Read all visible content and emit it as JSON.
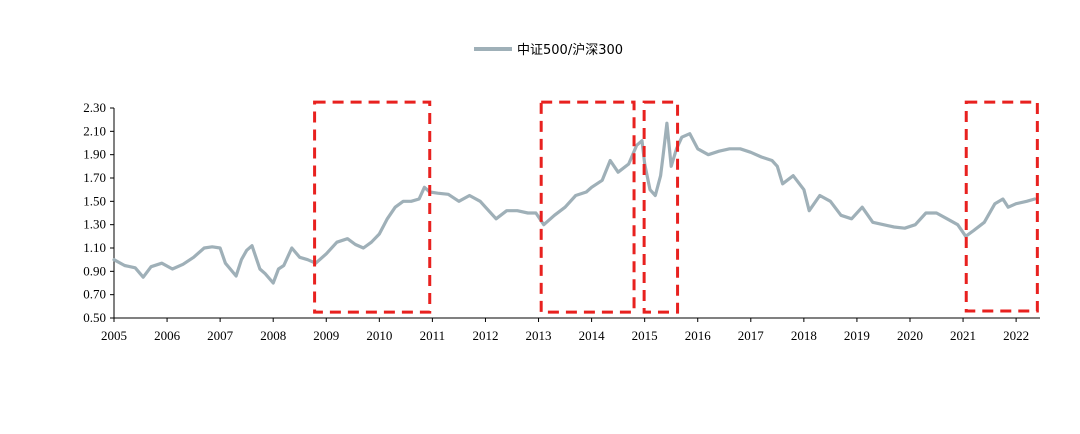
{
  "chart_data": {
    "type": "line",
    "title": "",
    "xlabel": "",
    "ylabel": "",
    "ylim": [
      0.5,
      2.3
    ],
    "yticks": [
      "0.50",
      "0.70",
      "0.90",
      "1.10",
      "1.30",
      "1.50",
      "1.70",
      "1.90",
      "2.10",
      "2.30"
    ],
    "xlim": [
      2005.0,
      2022.45
    ],
    "xticks": [
      "2005",
      "2006",
      "2007",
      "2008",
      "2009",
      "2010",
      "2011",
      "2012",
      "2013",
      "2014",
      "2015",
      "2016",
      "2017",
      "2018",
      "2019",
      "2020",
      "2021",
      "2022"
    ],
    "grid": false,
    "legend": "top-center",
    "series": [
      {
        "name": "中证500/沪深300",
        "color": "#9fb0b8",
        "x": [
          2005.0,
          2005.2,
          2005.4,
          2005.55,
          2005.7,
          2005.9,
          2006.1,
          2006.3,
          2006.5,
          2006.7,
          2006.85,
          2007.0,
          2007.1,
          2007.3,
          2007.4,
          2007.5,
          2007.6,
          2007.75,
          2007.85,
          2008.0,
          2008.1,
          2008.2,
          2008.35,
          2008.5,
          2008.65,
          2008.8,
          2009.0,
          2009.2,
          2009.4,
          2009.55,
          2009.7,
          2009.85,
          2010.0,
          2010.15,
          2010.3,
          2010.45,
          2010.6,
          2010.75,
          2010.85,
          2010.95,
          2011.1,
          2011.3,
          2011.5,
          2011.7,
          2011.9,
          2012.0,
          2012.2,
          2012.4,
          2012.6,
          2012.8,
          2012.95,
          2013.1,
          2013.3,
          2013.5,
          2013.7,
          2013.9,
          2014.0,
          2014.2,
          2014.35,
          2014.5,
          2014.7,
          2014.85,
          2014.95,
          2015.0,
          2015.1,
          2015.2,
          2015.3,
          2015.35,
          2015.42,
          2015.5,
          2015.6,
          2015.7,
          2015.85,
          2016.0,
          2016.2,
          2016.4,
          2016.6,
          2016.8,
          2017.0,
          2017.2,
          2017.4,
          2017.5,
          2017.6,
          2017.8,
          2018.0,
          2018.1,
          2018.3,
          2018.5,
          2018.7,
          2018.9,
          2019.1,
          2019.3,
          2019.5,
          2019.7,
          2019.9,
          2020.1,
          2020.3,
          2020.5,
          2020.7,
          2020.9,
          2021.05,
          2021.2,
          2021.4,
          2021.6,
          2021.75,
          2021.85,
          2022.0,
          2022.2,
          2022.35
        ],
        "values": [
          1.0,
          0.95,
          0.93,
          0.85,
          0.94,
          0.97,
          0.92,
          0.96,
          1.02,
          1.1,
          1.11,
          1.1,
          0.97,
          0.86,
          1.0,
          1.08,
          1.12,
          0.92,
          0.88,
          0.8,
          0.92,
          0.95,
          1.1,
          1.02,
          1.0,
          0.97,
          1.05,
          1.15,
          1.18,
          1.13,
          1.1,
          1.15,
          1.22,
          1.35,
          1.45,
          1.5,
          1.5,
          1.52,
          1.62,
          1.58,
          1.57,
          1.56,
          1.5,
          1.55,
          1.5,
          1.45,
          1.35,
          1.42,
          1.42,
          1.4,
          1.4,
          1.3,
          1.38,
          1.45,
          1.55,
          1.58,
          1.62,
          1.68,
          1.85,
          1.75,
          1.82,
          1.98,
          2.02,
          1.82,
          1.6,
          1.55,
          1.72,
          1.9,
          2.17,
          1.8,
          1.95,
          2.05,
          2.08,
          1.95,
          1.9,
          1.93,
          1.95,
          1.95,
          1.92,
          1.88,
          1.85,
          1.8,
          1.65,
          1.72,
          1.6,
          1.42,
          1.55,
          1.5,
          1.38,
          1.35,
          1.45,
          1.32,
          1.3,
          1.28,
          1.27,
          1.3,
          1.4,
          1.4,
          1.35,
          1.3,
          1.2,
          1.25,
          1.32,
          1.48,
          1.52,
          1.45,
          1.48,
          1.5,
          1.52
        ]
      }
    ],
    "annotations": [
      {
        "type": "dashed-box",
        "color": "#e8211f",
        "x0": 2008.78,
        "x1": 2010.95,
        "y0": 0.55,
        "y1": 2.35
      },
      {
        "type": "dashed-box",
        "color": "#e8211f",
        "x0": 2013.05,
        "x1": 2014.8,
        "y0": 0.55,
        "y1": 2.35
      },
      {
        "type": "dashed-box",
        "color": "#e8211f",
        "x0": 2014.99,
        "x1": 2015.62,
        "y0": 0.55,
        "y1": 2.35
      },
      {
        "type": "dashed-box",
        "color": "#e8211f",
        "x0": 2021.06,
        "x1": 2022.4,
        "y0": 0.56,
        "y1": 2.35
      }
    ]
  }
}
